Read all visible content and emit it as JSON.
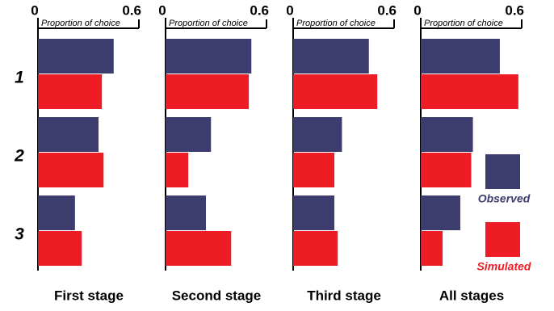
{
  "chart_data": [
    {
      "type": "bar",
      "orientation": "horizontal",
      "title": "First stage",
      "xlabel": "Proportion of choice",
      "categories": [
        "1",
        "2",
        "3"
      ],
      "xlim": [
        0,
        0.6
      ],
      "xticks": [
        0,
        0.6
      ],
      "series": [
        {
          "color": "#3c3c6e",
          "values": [
            0.45,
            0.36,
            0.22
          ]
        },
        {
          "color": "#ee1c25",
          "values": [
            0.38,
            0.39,
            0.26
          ]
        }
      ]
    },
    {
      "type": "bar",
      "orientation": "horizontal",
      "title": "Second stage",
      "xlabel": "Proportion of choice",
      "xlim": [
        0,
        0.6
      ],
      "xticks": [
        0,
        0.6
      ],
      "series": [
        {
          "color": "#3c3c6e",
          "values": [
            0.51,
            0.27,
            0.24
          ]
        },
        {
          "color": "#ee1c25",
          "values": [
            0.495,
            0.135,
            0.39
          ]
        }
      ]
    },
    {
      "type": "bar",
      "orientation": "horizontal",
      "title": "Third stage",
      "xlabel": "Proportion of choice",
      "xlim": [
        0,
        0.6
      ],
      "xticks": [
        0,
        0.6
      ],
      "series": [
        {
          "color": "#3c3c6e",
          "values": [
            0.45,
            0.29,
            0.245
          ]
        },
        {
          "color": "#ee1c25",
          "values": [
            0.5,
            0.245,
            0.265
          ]
        }
      ]
    },
    {
      "type": "bar",
      "orientation": "horizontal",
      "title": "All stages",
      "xlabel": "Proportion of choice",
      "xlim": [
        0,
        0.6
      ],
      "xticks": [
        0,
        0.6
      ],
      "legend": "lower right",
      "series": [
        {
          "name": "Observed",
          "color": "#3c3c6e",
          "values": [
            0.47,
            0.31,
            0.235
          ]
        },
        {
          "name": "Simulated",
          "color": "#ee1c25",
          "values": [
            0.58,
            0.3,
            0.13
          ]
        }
      ]
    }
  ]
}
